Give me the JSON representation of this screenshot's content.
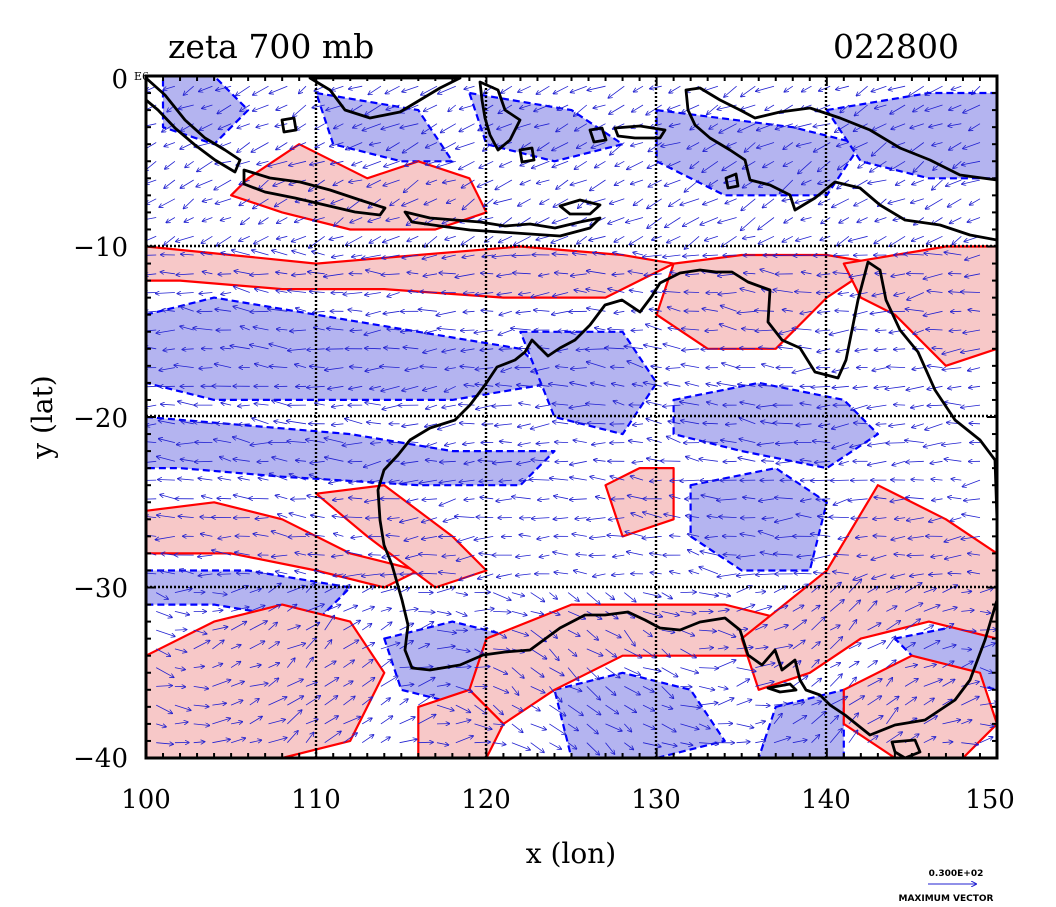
{
  "figure": {
    "title": "zeta 700 mb",
    "date_code": "022800",
    "xlabel": "x (lon)",
    "ylabel": "y (lat)",
    "corner_label": "E6",
    "max_vector_value": "0.300E+02",
    "max_vector_label": "MAXIMUM VECTOR"
  },
  "colors": {
    "positive_fill": "#f7c8c8",
    "positive_contour": "#ff0000",
    "negative_fill": "#b4b4f0",
    "negative_contour": "#0000ff",
    "vectors": "#2020d0",
    "coastline": "#000000",
    "grid": "#000000"
  },
  "chart_data": {
    "type": "map",
    "variable": "zeta 700 mb",
    "x_range": [
      100,
      150
    ],
    "y_range": [
      -40,
      0
    ],
    "x_ticks": [
      "100",
      "110",
      "120",
      "130",
      "140",
      "150"
    ],
    "y_ticks": [
      "0",
      "−10",
      "−20",
      "−30",
      "−40"
    ],
    "grid_lines_lon": [
      110,
      120,
      130,
      140
    ],
    "grid_lines_lat": [
      -10,
      -20,
      -30
    ],
    "positive_regions": [
      {
        "lon": [
          [
            106,
            -6
          ],
          [
            109,
            -4
          ],
          [
            113,
            -6
          ],
          [
            116,
            -5
          ],
          [
            119,
            -6
          ],
          [
            120,
            -8
          ],
          [
            117,
            -9
          ],
          [
            112,
            -9
          ],
          [
            108,
            -8
          ],
          [
            105,
            -7
          ]
        ]
      },
      {
        "lon": [
          [
            100,
            -10
          ],
          [
            105,
            -10.5
          ],
          [
            110,
            -11
          ],
          [
            116,
            -10.5
          ],
          [
            122,
            -10
          ],
          [
            128,
            -10.5
          ],
          [
            131,
            -11
          ],
          [
            127,
            -13
          ],
          [
            121,
            -13
          ],
          [
            114,
            -12.5
          ],
          [
            108,
            -12.5
          ],
          [
            102,
            -12
          ],
          [
            100,
            -12
          ]
        ]
      },
      {
        "lon": [
          [
            131,
            -11
          ],
          [
            135,
            -10.5
          ],
          [
            140,
            -10.5
          ],
          [
            143,
            -11
          ],
          [
            140,
            -13
          ],
          [
            137,
            -16
          ],
          [
            133,
            -16
          ],
          [
            130,
            -14
          ]
        ]
      },
      {
        "lon": [
          [
            141,
            -11
          ],
          [
            147,
            -10
          ],
          [
            150,
            -10
          ],
          [
            150,
            -16
          ],
          [
            147,
            -17
          ],
          [
            144,
            -14
          ],
          [
            142,
            -13
          ]
        ]
      },
      {
        "lon": [
          [
            100,
            -25.5
          ],
          [
            104,
            -25
          ],
          [
            108,
            -26
          ],
          [
            112,
            -28
          ],
          [
            116,
            -29
          ],
          [
            114,
            -30
          ],
          [
            110,
            -29
          ],
          [
            105,
            -28
          ],
          [
            100,
            -28
          ]
        ]
      },
      {
        "lon": [
          [
            110,
            -24.5
          ],
          [
            114,
            -24
          ],
          [
            118,
            -27
          ],
          [
            120,
            -29
          ],
          [
            117,
            -30
          ],
          [
            113,
            -27
          ]
        ]
      },
      {
        "lon": [
          [
            100,
            -34
          ],
          [
            104,
            -32
          ],
          [
            108,
            -31
          ],
          [
            112,
            -32
          ],
          [
            114,
            -35
          ],
          [
            112,
            -39
          ],
          [
            108,
            -40
          ],
          [
            104,
            -40
          ],
          [
            100,
            -40
          ]
        ]
      },
      {
        "lon": [
          [
            120,
            -33
          ],
          [
            125,
            -31
          ],
          [
            129,
            -31
          ],
          [
            134,
            -31
          ],
          [
            138,
            -32
          ],
          [
            137,
            -34
          ],
          [
            133,
            -34
          ],
          [
            128,
            -34
          ],
          [
            124,
            -36
          ],
          [
            121,
            -38
          ],
          [
            119,
            -36
          ]
        ]
      },
      {
        "lon": [
          [
            129,
            -23
          ],
          [
            131,
            -23
          ],
          [
            131,
            -26
          ],
          [
            128,
            -27
          ],
          [
            127,
            -24
          ]
        ]
      },
      {
        "lon": [
          [
            135,
            -33
          ],
          [
            140,
            -29
          ],
          [
            143,
            -24
          ],
          [
            147,
            -26
          ],
          [
            150,
            -28
          ],
          [
            150,
            -33
          ],
          [
            146,
            -32
          ],
          [
            142,
            -33
          ],
          [
            139,
            -35
          ],
          [
            136,
            -36
          ]
        ]
      },
      {
        "lon": [
          [
            141,
            -36
          ],
          [
            145,
            -34
          ],
          [
            149,
            -35
          ],
          [
            150,
            -38
          ],
          [
            148,
            -40
          ],
          [
            144,
            -40
          ],
          [
            141,
            -38
          ]
        ]
      },
      {
        "lon": [
          [
            116,
            -37
          ],
          [
            119,
            -36
          ],
          [
            121,
            -38
          ],
          [
            120,
            -40
          ],
          [
            116,
            -40
          ]
        ]
      }
    ],
    "negative_regions": [
      {
        "lon": [
          [
            101,
            0
          ],
          [
            104,
            0
          ],
          [
            106,
            -2
          ],
          [
            104,
            -4
          ],
          [
            101,
            -3
          ]
        ]
      },
      {
        "lon": [
          [
            110,
            -1
          ],
          [
            116,
            -2
          ],
          [
            118,
            -5
          ],
          [
            115,
            -5
          ],
          [
            111,
            -4
          ]
        ]
      },
      {
        "lon": [
          [
            119,
            -1
          ],
          [
            125,
            -2
          ],
          [
            128,
            -4
          ],
          [
            124,
            -5
          ],
          [
            120,
            -4
          ]
        ]
      },
      {
        "lon": [
          [
            130,
            -2
          ],
          [
            138,
            -3
          ],
          [
            142,
            -4
          ],
          [
            140,
            -7
          ],
          [
            134,
            -7
          ],
          [
            130,
            -5
          ]
        ]
      },
      {
        "lon": [
          [
            140,
            -2
          ],
          [
            146,
            -1
          ],
          [
            150,
            -1
          ],
          [
            150,
            -6
          ],
          [
            146,
            -6
          ],
          [
            142,
            -5
          ]
        ]
      },
      {
        "lon": [
          [
            100,
            -14
          ],
          [
            104,
            -13
          ],
          [
            110,
            -14
          ],
          [
            116,
            -15
          ],
          [
            122,
            -16
          ],
          [
            124,
            -18
          ],
          [
            118,
            -19
          ],
          [
            110,
            -19
          ],
          [
            104,
            -19
          ],
          [
            100,
            -18
          ]
        ]
      },
      {
        "lon": [
          [
            122,
            -15
          ],
          [
            128,
            -15
          ],
          [
            130,
            -18
          ],
          [
            128,
            -21
          ],
          [
            124,
            -20
          ]
        ]
      },
      {
        "lon": [
          [
            100,
            -20
          ],
          [
            106,
            -20.5
          ],
          [
            112,
            -21
          ],
          [
            118,
            -22
          ],
          [
            124,
            -22
          ],
          [
            122,
            -24
          ],
          [
            116,
            -24
          ],
          [
            108,
            -23.5
          ],
          [
            102,
            -23
          ],
          [
            100,
            -23
          ]
        ]
      },
      {
        "lon": [
          [
            131,
            -19
          ],
          [
            136,
            -18
          ],
          [
            141,
            -19
          ],
          [
            143,
            -21
          ],
          [
            140,
            -23
          ],
          [
            135,
            -22
          ],
          [
            131,
            -21
          ]
        ]
      },
      {
        "lon": [
          [
            132,
            -24
          ],
          [
            137,
            -23
          ],
          [
            140,
            -25
          ],
          [
            139,
            -29
          ],
          [
            135,
            -29
          ],
          [
            132,
            -27
          ]
        ]
      },
      {
        "lon": [
          [
            100,
            -29
          ],
          [
            106,
            -29
          ],
          [
            112,
            -30
          ],
          [
            110,
            -32
          ],
          [
            104,
            -31
          ],
          [
            100,
            -31
          ]
        ]
      },
      {
        "lon": [
          [
            114,
            -33
          ],
          [
            118,
            -32
          ],
          [
            122,
            -33
          ],
          [
            122,
            -36
          ],
          [
            119,
            -37
          ],
          [
            115,
            -36
          ]
        ]
      },
      {
        "lon": [
          [
            124,
            -36
          ],
          [
            128,
            -35
          ],
          [
            132,
            -36
          ],
          [
            134,
            -39
          ],
          [
            130,
            -40
          ],
          [
            125,
            -40
          ]
        ]
      },
      {
        "lon": [
          [
            137,
            -37
          ],
          [
            141,
            -36
          ],
          [
            141,
            -40
          ],
          [
            136,
            -40
          ]
        ]
      },
      {
        "lon": [
          [
            144,
            -33
          ],
          [
            149,
            -32
          ],
          [
            150,
            -33
          ],
          [
            150,
            -36
          ],
          [
            146,
            -35
          ]
        ]
      }
    ]
  }
}
